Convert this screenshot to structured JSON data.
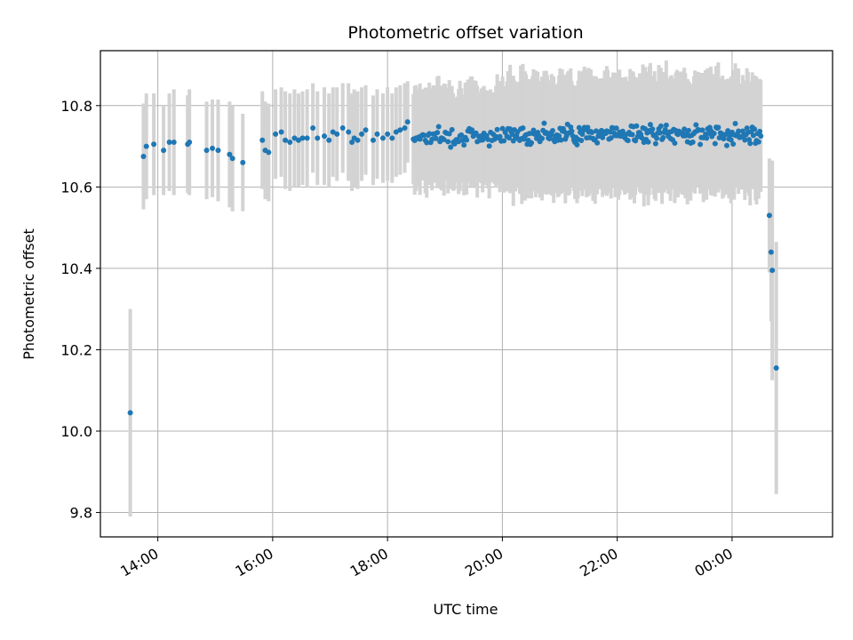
{
  "chart_data": {
    "type": "scatter",
    "title": "Photometric offset variation",
    "xlabel": "UTC time",
    "ylabel": "Photometric offset",
    "x_unit": "hours",
    "xlim": [
      13.0,
      25.75
    ],
    "ylim": [
      9.74,
      10.935
    ],
    "x_ticks": [
      {
        "value": 14,
        "label": "14:00"
      },
      {
        "value": 16,
        "label": "16:00"
      },
      {
        "value": 18,
        "label": "18:00"
      },
      {
        "value": 20,
        "label": "20:00"
      },
      {
        "value": 22,
        "label": "22:00"
      },
      {
        "value": 24,
        "label": "00:00"
      }
    ],
    "y_ticks": [
      {
        "value": 9.8,
        "label": "9.8"
      },
      {
        "value": 10.0,
        "label": "10.0"
      },
      {
        "value": 10.2,
        "label": "10.2"
      },
      {
        "value": 10.4,
        "label": "10.4"
      },
      {
        "value": 10.6,
        "label": "10.6"
      },
      {
        "value": 10.8,
        "label": "10.8"
      }
    ],
    "grid": true,
    "marker_color": "#1f77b4",
    "errorbar_color": "#d3d3d3",
    "series": [
      {
        "points": [
          [
            13.52,
            10.045,
            0.255
          ],
          [
            13.75,
            10.675,
            0.13
          ],
          [
            13.8,
            10.7,
            0.13
          ],
          [
            13.93,
            10.705,
            0.125
          ],
          [
            14.1,
            10.69,
            0.11
          ],
          [
            14.2,
            10.71,
            0.12
          ],
          [
            14.28,
            10.71,
            0.13
          ],
          [
            14.52,
            10.705,
            0.12
          ],
          [
            14.55,
            10.71,
            0.13
          ],
          [
            14.85,
            10.69,
            0.12
          ],
          [
            14.95,
            10.695,
            0.12
          ],
          [
            15.05,
            10.69,
            0.125
          ],
          [
            15.25,
            10.68,
            0.13
          ],
          [
            15.3,
            10.67,
            0.13
          ],
          [
            15.48,
            10.66,
            0.12
          ],
          [
            15.82,
            10.715,
            0.12
          ],
          [
            15.87,
            10.69,
            0.12
          ],
          [
            15.93,
            10.685,
            0.12
          ],
          [
            16.05,
            10.73,
            0.11
          ],
          [
            16.15,
            10.735,
            0.11
          ],
          [
            16.22,
            10.715,
            0.12
          ],
          [
            16.3,
            10.71,
            0.12
          ],
          [
            16.38,
            10.72,
            0.12
          ],
          [
            16.45,
            10.715,
            0.115
          ],
          [
            16.52,
            10.72,
            0.115
          ],
          [
            16.6,
            10.72,
            0.12
          ],
          [
            16.7,
            10.745,
            0.11
          ],
          [
            16.78,
            10.72,
            0.115
          ],
          [
            16.9,
            10.725,
            0.12
          ],
          [
            16.98,
            10.715,
            0.115
          ],
          [
            17.05,
            10.735,
            0.11
          ],
          [
            17.12,
            10.73,
            0.115
          ],
          [
            17.22,
            10.745,
            0.11
          ],
          [
            17.32,
            10.735,
            0.12
          ],
          [
            17.38,
            10.71,
            0.12
          ],
          [
            17.42,
            10.72,
            0.12
          ],
          [
            17.48,
            10.715,
            0.12
          ],
          [
            17.55,
            10.73,
            0.115
          ],
          [
            17.62,
            10.74,
            0.11
          ],
          [
            17.75,
            10.715,
            0.11
          ],
          [
            17.82,
            10.73,
            0.11
          ],
          [
            17.92,
            10.72,
            0.11
          ],
          [
            18.0,
            10.73,
            0.115
          ],
          [
            18.08,
            10.72,
            0.11
          ],
          [
            18.15,
            10.735,
            0.11
          ],
          [
            18.22,
            10.74,
            0.11
          ],
          [
            18.3,
            10.745,
            0.11
          ],
          [
            18.35,
            10.76,
            0.1
          ]
        ],
        "dense_segments": [
          {
            "x_start": 18.45,
            "x_end": 20.05,
            "n": 70,
            "mean": 10.725,
            "spread": 0.014,
            "err": 0.12
          },
          {
            "x_start": 20.08,
            "x_end": 24.5,
            "n": 240,
            "mean": 10.73,
            "spread": 0.014,
            "err": 0.14
          }
        ],
        "tail_points": [
          [
            24.65,
            10.53,
            0.14
          ],
          [
            24.68,
            10.44,
            0.17
          ],
          [
            24.7,
            10.395,
            0.27
          ],
          [
            24.77,
            10.155,
            0.31
          ]
        ]
      }
    ]
  }
}
